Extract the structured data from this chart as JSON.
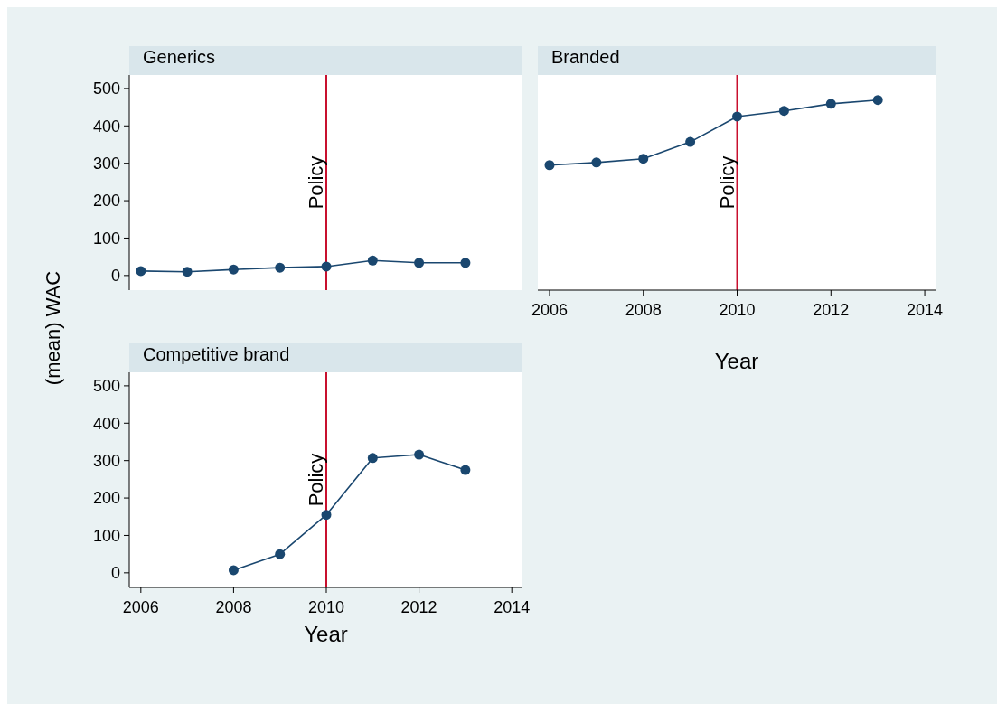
{
  "chart_data": [
    {
      "type": "line",
      "title": "Generics",
      "ylabel": "(mean) WAC",
      "x": [
        2006,
        2007,
        2008,
        2009,
        2010,
        2011,
        2012,
        2013
      ],
      "series": [
        {
          "color": "#1a476f",
          "values": [
            12,
            10,
            16,
            21,
            24,
            40,
            34,
            34
          ]
        }
      ],
      "xlim": [
        2005.75,
        2014.23
      ],
      "ylim": [
        -39,
        536
      ],
      "yticks": [
        0,
        100,
        200,
        300,
        400,
        500
      ],
      "tick_labels": "y",
      "marker": "circle",
      "grid": false,
      "ref_lines": [
        {
          "axis": "x",
          "value": 2010,
          "label": "Policy",
          "color": "#c8102e"
        }
      ]
    },
    {
      "type": "line",
      "title": "Branded",
      "xlabel": "Year",
      "x": [
        2006,
        2007,
        2008,
        2009,
        2010,
        2011,
        2012,
        2013
      ],
      "series": [
        {
          "color": "#1a476f",
          "values": [
            295,
            302,
            312,
            357,
            425,
            440,
            459,
            469
          ]
        }
      ],
      "xlim": [
        2005.75,
        2014.23
      ],
      "ylim": [
        -39,
        536
      ],
      "xticks": [
        2006,
        2008,
        2010,
        2012,
        2014
      ],
      "tick_labels": "x",
      "marker": "circle",
      "grid": false,
      "ref_lines": [
        {
          "axis": "x",
          "value": 2010,
          "label": "Policy",
          "color": "#c8102e"
        }
      ]
    },
    {
      "type": "line",
      "title": "Competitive brand",
      "xlabel": "Year",
      "x": [
        2008,
        2009,
        2010,
        2011,
        2012,
        2013
      ],
      "series": [
        {
          "color": "#1a476f",
          "values": [
            7,
            50,
            155,
            307,
            316,
            275
          ]
        }
      ],
      "xlim": [
        2005.75,
        2014.23
      ],
      "ylim": [
        -39,
        536
      ],
      "yticks": [
        0,
        100,
        200,
        300,
        400,
        500
      ],
      "xticks": [
        2006,
        2008,
        2010,
        2012,
        2014
      ],
      "marker": "circle",
      "grid": false,
      "ref_lines": [
        {
          "axis": "x",
          "value": 2010,
          "label": "Policy",
          "color": "#c8102e"
        }
      ]
    }
  ]
}
